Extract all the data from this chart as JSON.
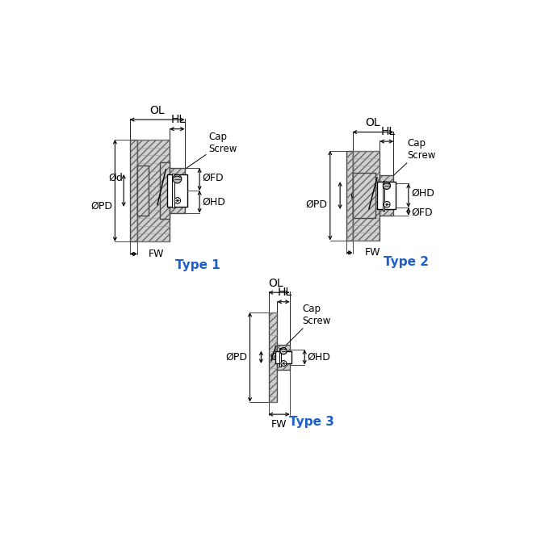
{
  "bg_color": "#ffffff",
  "type_color": "#1a5fcc",
  "type1_label": "Type 1",
  "type2_label": "Type 2",
  "type3_label": "Type 3",
  "label_fontsize": 9,
  "type_fontsize": 11
}
